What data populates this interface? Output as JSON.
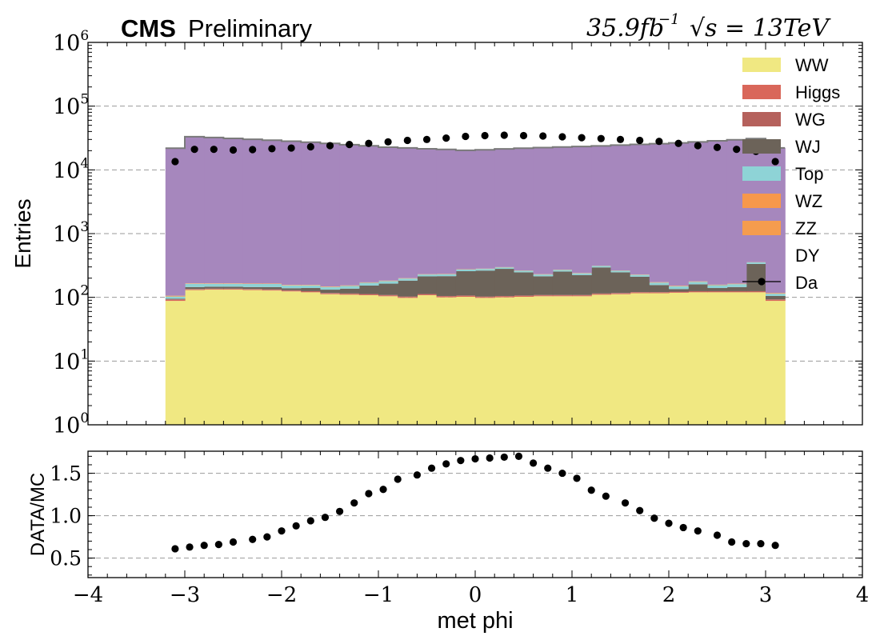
{
  "header": {
    "experiment": "CMS",
    "status": "Preliminary",
    "lumi_text": "35.9fb",
    "lumi_exp": "−1",
    "energy_text": "√s = 13TeV"
  },
  "chart_data": [
    {
      "type": "bar",
      "subtype": "stacked-histogram",
      "ylabel": "Entries",
      "yscale": "log",
      "xlim": [
        -4,
        4
      ],
      "ylim": [
        1,
        1000000
      ],
      "x_ticks": [
        -4,
        -3,
        -2,
        -1,
        0,
        1,
        2,
        3,
        4
      ],
      "y_ticks": [
        {
          "value": 1,
          "base": "10",
          "exp": "0"
        },
        {
          "value": 10,
          "base": "10",
          "exp": "1"
        },
        {
          "value": 100,
          "base": "10",
          "exp": "2"
        },
        {
          "value": 1000,
          "base": "10",
          "exp": "3"
        },
        {
          "value": 10000,
          "base": "10",
          "exp": "4"
        },
        {
          "value": 100000,
          "base": "10",
          "exp": "5"
        },
        {
          "value": 1000000,
          "base": "10",
          "exp": "6"
        }
      ],
      "grid": "horizontal",
      "legend_position": "top-right",
      "bins": {
        "min": -3.2,
        "max": 3.2,
        "count": 32
      },
      "series": [
        {
          "name": "WW",
          "color": "#f0e882",
          "values": [
            88,
            130,
            132,
            132,
            130,
            128,
            124,
            120,
            112,
            110,
            108,
            104,
            98,
            108,
            100,
            102,
            98,
            100,
            102,
            104,
            104,
            104,
            110,
            112,
            116,
            116,
            118,
            120,
            120,
            120,
            120,
            88
          ]
        },
        {
          "name": "Higgs",
          "color": "#d9675a",
          "values": [
            3,
            3,
            3,
            3,
            3,
            3,
            3,
            3,
            3,
            3,
            3,
            3,
            3,
            3,
            3,
            3,
            3,
            3,
            3,
            3,
            3,
            3,
            3,
            3,
            3,
            3,
            3,
            3,
            3,
            3,
            3,
            3
          ]
        },
        {
          "name": "WG",
          "color": "#b5615c",
          "values": [
            2,
            2,
            2,
            2,
            2,
            2,
            2,
            2,
            2,
            2,
            2,
            2,
            2,
            2,
            2,
            2,
            2,
            2,
            2,
            2,
            2,
            2,
            2,
            2,
            2,
            2,
            2,
            2,
            2,
            2,
            2,
            2
          ]
        },
        {
          "name": "WJ",
          "color": "#6c6359",
          "values": [
            2,
            10,
            10,
            10,
            10,
            12,
            10,
            15,
            15,
            22,
            40,
            55,
            80,
            100,
            110,
            150,
            160,
            175,
            140,
            105,
            145,
            115,
            180,
            130,
            90,
            35,
            12,
            35,
            15,
            20,
            210,
            12
          ]
        },
        {
          "name": "Top",
          "color": "#8ed3d6",
          "values": [
            8,
            18,
            16,
            16,
            17,
            17,
            15,
            14,
            13,
            14,
            16,
            16,
            14,
            15,
            15,
            16,
            16,
            15,
            14,
            14,
            15,
            14,
            15,
            14,
            14,
            14,
            14,
            15,
            15,
            16,
            18,
            9
          ]
        },
        {
          "name": "WZ",
          "color": "#f7984b",
          "values": [
            2,
            2,
            2,
            2,
            2,
            2,
            2,
            2,
            2,
            2,
            2,
            2,
            2,
            2,
            2,
            2,
            2,
            2,
            2,
            2,
            2,
            2,
            2,
            2,
            2,
            2,
            2,
            2,
            2,
            2,
            2,
            2
          ]
        },
        {
          "name": "ZZ",
          "color": "#f59c4e",
          "values": [
            1,
            1,
            1,
            1,
            1,
            1,
            1,
            1,
            1,
            1,
            1,
            1,
            1,
            1,
            1,
            1,
            1,
            1,
            1,
            1,
            1,
            1,
            1,
            1,
            1,
            1,
            1,
            1,
            1,
            1,
            1,
            1
          ]
        },
        {
          "name": "DY",
          "color": "#a687bd",
          "values": [
            21800,
            33000,
            32000,
            31000,
            30000,
            29000,
            28000,
            27000,
            25900,
            24700,
            23700,
            22500,
            21900,
            21200,
            20700,
            20000,
            20400,
            21000,
            21600,
            22100,
            22600,
            23000,
            23500,
            24200,
            24900,
            25600,
            26300,
            27300,
            28400,
            29500,
            30600,
            22000
          ]
        }
      ],
      "data_points": {
        "name": "Da",
        "x": [
          -3.1,
          -2.9,
          -2.7,
          -2.5,
          -2.3,
          -2.1,
          -1.9,
          -1.7,
          -1.5,
          -1.3,
          -1.1,
          -0.9,
          -0.7,
          -0.5,
          -0.3,
          -0.1,
          0.1,
          0.3,
          0.5,
          0.7,
          0.9,
          1.1,
          1.3,
          1.5,
          1.7,
          1.9,
          2.1,
          2.3,
          2.5,
          2.7,
          2.9,
          3.1
        ],
        "y": [
          13500,
          21000,
          21000,
          20500,
          20800,
          21500,
          22000,
          23000,
          24000,
          25000,
          26000,
          27500,
          29000,
          30000,
          31500,
          33500,
          34500,
          35000,
          34500,
          34000,
          33000,
          32000,
          31000,
          30000,
          29000,
          28000,
          26000,
          24000,
          22500,
          21000,
          19500,
          13500
        ]
      }
    },
    {
      "type": "scatter",
      "xlabel": "met phi",
      "ylabel": "DATA/MC",
      "xlim": [
        -4,
        4
      ],
      "ylim": [
        0.27,
        1.76
      ],
      "x_ticks": [
        {
          "value": -4,
          "label": "−4"
        },
        {
          "value": -3,
          "label": "−3"
        },
        {
          "value": -2,
          "label": "−2"
        },
        {
          "value": -1,
          "label": "−1"
        },
        {
          "value": 0,
          "label": "0"
        },
        {
          "value": 1,
          "label": "1"
        },
        {
          "value": 2,
          "label": "2"
        },
        {
          "value": 3,
          "label": "3"
        },
        {
          "value": 4,
          "label": "4"
        }
      ],
      "y_ticks": [
        {
          "value": 0.5,
          "label": "0.5"
        },
        {
          "value": 1.0,
          "label": "1.0"
        },
        {
          "value": 1.5,
          "label": "1.5"
        }
      ],
      "grid": "horizontal",
      "x": [
        -3.1,
        -2.95,
        -2.8,
        -2.65,
        -2.5,
        -2.3,
        -2.15,
        -2.0,
        -1.85,
        -1.7,
        -1.55,
        -1.4,
        -1.25,
        -1.1,
        -0.95,
        -0.8,
        -0.6,
        -0.45,
        -0.3,
        -0.15,
        0.0,
        0.15,
        0.3,
        0.45,
        0.6,
        0.75,
        0.9,
        1.05,
        1.2,
        1.35,
        1.55,
        1.7,
        1.85,
        2.0,
        2.15,
        2.3,
        2.5,
        2.65,
        2.8,
        2.95,
        3.1
      ],
      "y": [
        0.61,
        0.63,
        0.65,
        0.66,
        0.69,
        0.72,
        0.75,
        0.82,
        0.88,
        0.94,
        0.98,
        1.05,
        1.15,
        1.26,
        1.31,
        1.43,
        1.48,
        1.56,
        1.61,
        1.65,
        1.67,
        1.68,
        1.69,
        1.7,
        1.62,
        1.56,
        1.5,
        1.44,
        1.3,
        1.23,
        1.15,
        1.06,
        0.97,
        0.91,
        0.86,
        0.82,
        0.77,
        0.69,
        0.67,
        0.67,
        0.65
      ]
    }
  ]
}
